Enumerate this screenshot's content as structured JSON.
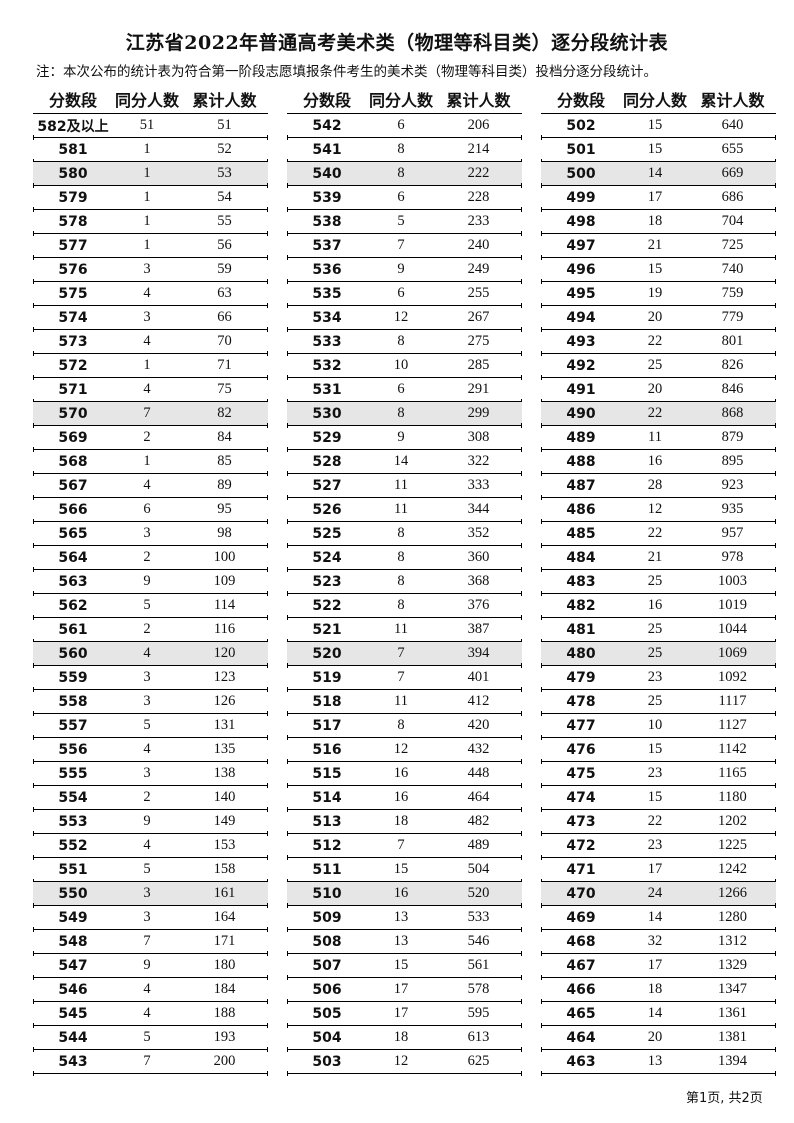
{
  "title": "江苏省2022年普通高考美术类（物理等科目类）逐分段统计表",
  "note": "注：本次公布的统计表为符合第一阶段志愿填报条件考生的美术类（物理等科目类）投档分逐分段统计。",
  "headers": [
    "分数段",
    "同分人数",
    "累计人数"
  ],
  "tables": [
    {
      "rows": [
        [
          "582及以上",
          "51",
          "51"
        ],
        [
          "581",
          "1",
          "52"
        ],
        [
          "580",
          "1",
          "53"
        ],
        [
          "579",
          "1",
          "54"
        ],
        [
          "578",
          "1",
          "55"
        ],
        [
          "577",
          "1",
          "56"
        ],
        [
          "576",
          "3",
          "59"
        ],
        [
          "575",
          "4",
          "63"
        ],
        [
          "574",
          "3",
          "66"
        ],
        [
          "573",
          "4",
          "70"
        ],
        [
          "572",
          "1",
          "71"
        ],
        [
          "571",
          "4",
          "75"
        ],
        [
          "570",
          "7",
          "82"
        ],
        [
          "569",
          "2",
          "84"
        ],
        [
          "568",
          "1",
          "85"
        ],
        [
          "567",
          "4",
          "89"
        ],
        [
          "566",
          "6",
          "95"
        ],
        [
          "565",
          "3",
          "98"
        ],
        [
          "564",
          "2",
          "100"
        ],
        [
          "563",
          "9",
          "109"
        ],
        [
          "562",
          "5",
          "114"
        ],
        [
          "561",
          "2",
          "116"
        ],
        [
          "560",
          "4",
          "120"
        ],
        [
          "559",
          "3",
          "123"
        ],
        [
          "558",
          "3",
          "126"
        ],
        [
          "557",
          "5",
          "131"
        ],
        [
          "556",
          "4",
          "135"
        ],
        [
          "555",
          "3",
          "138"
        ],
        [
          "554",
          "2",
          "140"
        ],
        [
          "553",
          "9",
          "149"
        ],
        [
          "552",
          "4",
          "153"
        ],
        [
          "551",
          "5",
          "158"
        ],
        [
          "550",
          "3",
          "161"
        ],
        [
          "549",
          "3",
          "164"
        ],
        [
          "548",
          "7",
          "171"
        ],
        [
          "547",
          "9",
          "180"
        ],
        [
          "546",
          "4",
          "184"
        ],
        [
          "545",
          "4",
          "188"
        ],
        [
          "544",
          "5",
          "193"
        ],
        [
          "543",
          "7",
          "200"
        ]
      ]
    },
    {
      "rows": [
        [
          "542",
          "6",
          "206"
        ],
        [
          "541",
          "8",
          "214"
        ],
        [
          "540",
          "8",
          "222"
        ],
        [
          "539",
          "6",
          "228"
        ],
        [
          "538",
          "5",
          "233"
        ],
        [
          "537",
          "7",
          "240"
        ],
        [
          "536",
          "9",
          "249"
        ],
        [
          "535",
          "6",
          "255"
        ],
        [
          "534",
          "12",
          "267"
        ],
        [
          "533",
          "8",
          "275"
        ],
        [
          "532",
          "10",
          "285"
        ],
        [
          "531",
          "6",
          "291"
        ],
        [
          "530",
          "8",
          "299"
        ],
        [
          "529",
          "9",
          "308"
        ],
        [
          "528",
          "14",
          "322"
        ],
        [
          "527",
          "11",
          "333"
        ],
        [
          "526",
          "11",
          "344"
        ],
        [
          "525",
          "8",
          "352"
        ],
        [
          "524",
          "8",
          "360"
        ],
        [
          "523",
          "8",
          "368"
        ],
        [
          "522",
          "8",
          "376"
        ],
        [
          "521",
          "11",
          "387"
        ],
        [
          "520",
          "7",
          "394"
        ],
        [
          "519",
          "7",
          "401"
        ],
        [
          "518",
          "11",
          "412"
        ],
        [
          "517",
          "8",
          "420"
        ],
        [
          "516",
          "12",
          "432"
        ],
        [
          "515",
          "16",
          "448"
        ],
        [
          "514",
          "16",
          "464"
        ],
        [
          "513",
          "18",
          "482"
        ],
        [
          "512",
          "7",
          "489"
        ],
        [
          "511",
          "15",
          "504"
        ],
        [
          "510",
          "16",
          "520"
        ],
        [
          "509",
          "13",
          "533"
        ],
        [
          "508",
          "13",
          "546"
        ],
        [
          "507",
          "15",
          "561"
        ],
        [
          "506",
          "17",
          "578"
        ],
        [
          "505",
          "17",
          "595"
        ],
        [
          "504",
          "18",
          "613"
        ],
        [
          "503",
          "12",
          "625"
        ]
      ]
    },
    {
      "rows": [
        [
          "502",
          "15",
          "640"
        ],
        [
          "501",
          "15",
          "655"
        ],
        [
          "500",
          "14",
          "669"
        ],
        [
          "499",
          "17",
          "686"
        ],
        [
          "498",
          "18",
          "704"
        ],
        [
          "497",
          "21",
          "725"
        ],
        [
          "496",
          "15",
          "740"
        ],
        [
          "495",
          "19",
          "759"
        ],
        [
          "494",
          "20",
          "779"
        ],
        [
          "493",
          "22",
          "801"
        ],
        [
          "492",
          "25",
          "826"
        ],
        [
          "491",
          "20",
          "846"
        ],
        [
          "490",
          "22",
          "868"
        ],
        [
          "489",
          "11",
          "879"
        ],
        [
          "488",
          "16",
          "895"
        ],
        [
          "487",
          "28",
          "923"
        ],
        [
          "486",
          "12",
          "935"
        ],
        [
          "485",
          "22",
          "957"
        ],
        [
          "484",
          "21",
          "978"
        ],
        [
          "483",
          "25",
          "1003"
        ],
        [
          "482",
          "16",
          "1019"
        ],
        [
          "481",
          "25",
          "1044"
        ],
        [
          "480",
          "25",
          "1069"
        ],
        [
          "479",
          "23",
          "1092"
        ],
        [
          "478",
          "25",
          "1117"
        ],
        [
          "477",
          "10",
          "1127"
        ],
        [
          "476",
          "15",
          "1142"
        ],
        [
          "475",
          "23",
          "1165"
        ],
        [
          "474",
          "15",
          "1180"
        ],
        [
          "473",
          "22",
          "1202"
        ],
        [
          "472",
          "23",
          "1225"
        ],
        [
          "471",
          "17",
          "1242"
        ],
        [
          "470",
          "24",
          "1266"
        ],
        [
          "469",
          "14",
          "1280"
        ],
        [
          "468",
          "32",
          "1312"
        ],
        [
          "467",
          "17",
          "1329"
        ],
        [
          "466",
          "18",
          "1347"
        ],
        [
          "465",
          "14",
          "1361"
        ],
        [
          "464",
          "20",
          "1381"
        ],
        [
          "463",
          "13",
          "1394"
        ]
      ]
    }
  ],
  "shade_color": "#e6e6e6",
  "footer": "第1页, 共2页"
}
